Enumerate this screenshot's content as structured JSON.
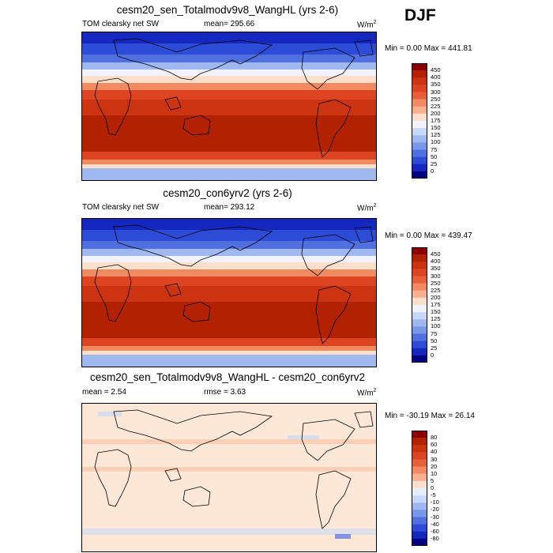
{
  "season": "DJF",
  "panels": [
    {
      "id": "p1",
      "title": "cesm20_sen_Totalmodv9v8_WangHL (yrs 2-6)",
      "left_label": "TOM clearsky net SW",
      "center_label": "mean= 295.66",
      "units": "W/m",
      "units_exp": "2",
      "minmax": "Min =   0.00 Max = 441.81",
      "colorbar_labels": [
        "450",
        "400",
        "350",
        "300",
        "250",
        "225",
        "200",
        "175",
        "150",
        "125",
        "100",
        "75",
        "50",
        "25",
        "0"
      ],
      "colorbar_colors": [
        "#8b0000",
        "#b22200",
        "#cc3311",
        "#dd4422",
        "#e8603a",
        "#f08a60",
        "#f6b090",
        "#fde0cc",
        "#f2f2ff",
        "#c8d8f8",
        "#a0b8f0",
        "#7898e8",
        "#5070e0",
        "#2c4cd8",
        "#1428c0",
        "#000080"
      ]
    },
    {
      "id": "p2",
      "title": "cesm20_con6yrv2 (yrs 2-6)",
      "left_label": "TOM clearsky net SW",
      "center_label": "mean= 293.12",
      "units": "W/m",
      "units_exp": "2",
      "minmax": "Min =   0.00 Max = 439.47",
      "colorbar_labels": [
        "450",
        "400",
        "350",
        "300",
        "250",
        "225",
        "200",
        "175",
        "150",
        "125",
        "100",
        "75",
        "50",
        "25",
        "0"
      ],
      "colorbar_colors": [
        "#8b0000",
        "#b22200",
        "#cc3311",
        "#dd4422",
        "#e8603a",
        "#f08a60",
        "#f6b090",
        "#fde0cc",
        "#f2f2ff",
        "#c8d8f8",
        "#a0b8f0",
        "#7898e8",
        "#5070e0",
        "#2c4cd8",
        "#1428c0",
        "#000080"
      ]
    },
    {
      "id": "p3",
      "title": "cesm20_sen_Totalmodv9v8_WangHL - cesm20_con6yrv2",
      "left_label": "mean =   2.54",
      "center_label": "rmse =   3.63",
      "units": "W/m",
      "units_exp": "2",
      "minmax": "Min = -30.19 Max =  26.14",
      "colorbar_labels": [
        "80",
        "60",
        "40",
        "30",
        "20",
        "10",
        "5",
        "0",
        "-5",
        "-10",
        "-20",
        "-30",
        "-40",
        "-60",
        "-80"
      ],
      "colorbar_colors": [
        "#8b0000",
        "#b22200",
        "#cc3311",
        "#dd4422",
        "#e8603a",
        "#f08a60",
        "#f6b090",
        "#fde0cc",
        "#e4eeff",
        "#c8d8f8",
        "#a0b8f0",
        "#7898e8",
        "#5070e0",
        "#2c4cd8",
        "#1428c0",
        "#000080"
      ]
    }
  ]
}
